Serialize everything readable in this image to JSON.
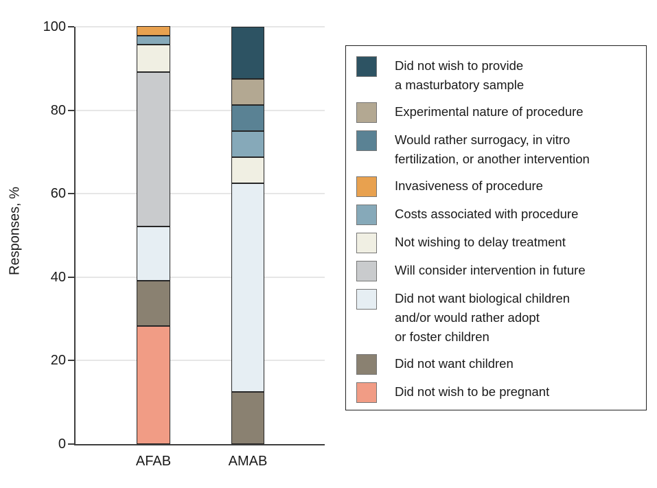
{
  "chart_data": {
    "type": "bar",
    "subtype": "stacked-vertical",
    "title": "",
    "ylabel": "Responses, %",
    "xlabel": "",
    "ylim": [
      0,
      100
    ],
    "yticks": [
      0,
      20,
      40,
      60,
      80,
      100
    ],
    "ytick_labels": [
      "0",
      "20",
      "40",
      "60",
      "80",
      "100"
    ],
    "grid": "horizontal",
    "legend_position": "right",
    "categories": [
      "AFAB",
      "AMAB"
    ],
    "series": [
      {
        "name": "Did not wish to be pregnant",
        "color": "#F19C85",
        "values": [
          28.3,
          0
        ]
      },
      {
        "name": "Did not want children",
        "color": "#8A8171",
        "values": [
          10.9,
          12.5
        ]
      },
      {
        "name": "Did not want biological children and/or would rather adopt or foster children",
        "color": "#E6EEF3",
        "values": [
          13.0,
          50.0
        ]
      },
      {
        "name": "Will consider intervention in future",
        "color": "#C9CBCD",
        "values": [
          37.0,
          0
        ]
      },
      {
        "name": "Not wishing to delay treatment",
        "color": "#F0EFE3",
        "values": [
          6.5,
          6.25
        ]
      },
      {
        "name": "Costs associated with procedure",
        "color": "#86A9B9",
        "values": [
          2.2,
          6.25
        ]
      },
      {
        "name": "Invasiveness of procedure",
        "color": "#E8A14F",
        "values": [
          2.2,
          0
        ]
      },
      {
        "name": "Would rather surrogacy, in vitro fertilization, or another intervention",
        "color": "#5A8294",
        "values": [
          0,
          6.25
        ]
      },
      {
        "name": "Experimental nature of procedure",
        "color": "#B3A892",
        "values": [
          0,
          6.25
        ]
      },
      {
        "name": "Did not wish to provide a masturbatory sample",
        "color": "#2D5363",
        "values": [
          0,
          12.5
        ]
      }
    ]
  },
  "legend": {
    "items": [
      {
        "label": "Did not wish to provide\na masturbatory sample",
        "color": "#2D5363"
      },
      {
        "label": "Experimental nature of procedure",
        "color": "#B3A892"
      },
      {
        "label": "Would rather surrogacy, in vitro\nfertilization, or another intervention",
        "color": "#5A8294"
      },
      {
        "label": "Invasiveness of procedure",
        "color": "#E8A14F"
      },
      {
        "label": "Costs associated with procedure",
        "color": "#86A9B9"
      },
      {
        "label": "Not wishing to delay treatment",
        "color": "#F0EFE3"
      },
      {
        "label": "Will consider intervention in future",
        "color": "#C9CBCD"
      },
      {
        "label": "Did not want biological children\nand/or would rather adopt\nor foster children",
        "color": "#E6EEF3"
      },
      {
        "label": "Did not want children",
        "color": "#8A8171"
      },
      {
        "label": "Did not wish to be pregnant",
        "color": "#F19C85"
      }
    ]
  },
  "colors": {
    "axis": "#3d3d3d",
    "gridline": "#e6e6e6",
    "segment_border": "#262626",
    "legend_border": "#1f1f1f",
    "text": "#1a1a1a"
  }
}
